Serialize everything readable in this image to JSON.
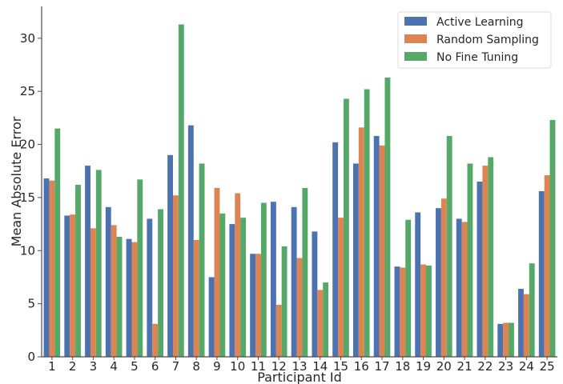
{
  "chart_data": {
    "type": "bar",
    "xlabel": "Participant Id",
    "ylabel": "Mean Absolute Error",
    "ylim": [
      0,
      33
    ],
    "yticks": [
      0,
      5,
      10,
      15,
      20,
      25,
      30
    ],
    "grid": false,
    "legend_position": "top-right",
    "categories": [
      "1",
      "2",
      "3",
      "4",
      "5",
      "6",
      "7",
      "8",
      "9",
      "10",
      "11",
      "12",
      "13",
      "14",
      "15",
      "16",
      "17",
      "18",
      "19",
      "20",
      "21",
      "22",
      "23",
      "24",
      "25"
    ],
    "series": [
      {
        "name": "Active Learning",
        "color": "#4c72b0",
        "values": [
          16.8,
          13.3,
          18.0,
          14.1,
          11.1,
          13.0,
          19.0,
          21.8,
          7.5,
          12.5,
          9.7,
          14.6,
          14.1,
          11.8,
          20.2,
          18.2,
          20.8,
          8.5,
          13.6,
          14.0,
          13.0,
          16.5,
          3.1,
          6.4,
          15.6
        ]
      },
      {
        "name": "Random Sampling",
        "color": "#dd8452",
        "values": [
          16.6,
          13.4,
          12.1,
          12.4,
          10.8,
          3.1,
          15.2,
          11.0,
          15.9,
          15.4,
          9.7,
          4.9,
          9.3,
          6.3,
          13.1,
          21.6,
          19.9,
          8.4,
          8.7,
          14.9,
          12.7,
          18.0,
          3.2,
          5.9,
          17.1
        ]
      },
      {
        "name": "No Fine Tuning",
        "color": "#55a868",
        "values": [
          21.5,
          16.2,
          17.6,
          11.3,
          16.7,
          13.9,
          31.3,
          18.2,
          13.5,
          13.1,
          14.5,
          10.4,
          15.9,
          7.0,
          24.3,
          25.2,
          26.3,
          12.9,
          8.6,
          20.8,
          18.2,
          18.8,
          3.2,
          8.8,
          22.3
        ]
      }
    ]
  }
}
